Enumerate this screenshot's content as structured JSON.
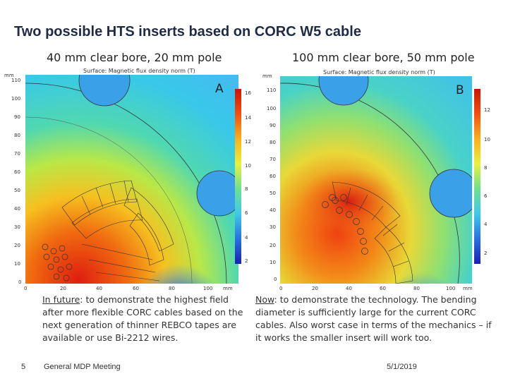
{
  "slide": {
    "title": "Two possible HTS inserts based on CORC W5 cable",
    "left": {
      "subtitle": "40 mm clear bore, 20 mm pole",
      "plot_label": "Surface: Magnetic flux density norm (T)",
      "letter": "A",
      "axis_unit": "mm",
      "x_ticks": [
        "0",
        "20",
        "40",
        "60",
        "80",
        "100"
      ],
      "y_ticks": [
        "110",
        "100",
        "90",
        "80",
        "70",
        "60",
        "50",
        "40",
        "30",
        "20",
        "10",
        "0"
      ],
      "colorbar_ticks": [
        "16",
        "14",
        "12",
        "10",
        "8",
        "6",
        "4",
        "2"
      ],
      "caption_lead": "In future",
      "caption_rest": ": to demonstrate the highest field after more flexible CORC cables based on the next generation of thinner REBCO tapes are available or use Bi-2212 wires."
    },
    "right": {
      "subtitle": "100 mm clear bore, 50 mm pole",
      "plot_label": "Surface: Magnetic flux density norm (T)",
      "letter": "B",
      "axis_unit": "mm",
      "x_ticks": [
        "0",
        "20",
        "40",
        "60",
        "80",
        "100"
      ],
      "y_ticks": [
        "110",
        "100",
        "90",
        "80",
        "70",
        "60",
        "50",
        "40",
        "30",
        "20",
        "10",
        "0"
      ],
      "colorbar_ticks": [
        "12",
        "10",
        "8",
        "6",
        "4",
        "2"
      ],
      "caption_lead": "Now",
      "caption_rest": ": to demonstrate the technology. The bending diameter is sufficiently large for the current CORC cables. Also worst case in terms of the mechanics – if it works the smaller insert will work too."
    },
    "footer": {
      "page_number": "5",
      "meeting": "General MDP Meeting",
      "date": "5/1/2019"
    },
    "colors": {
      "title": "#1f2a44",
      "field_low": "#1e2fbf",
      "field_mid": "#3fd0e8",
      "field_high": "#d81e10"
    }
  }
}
